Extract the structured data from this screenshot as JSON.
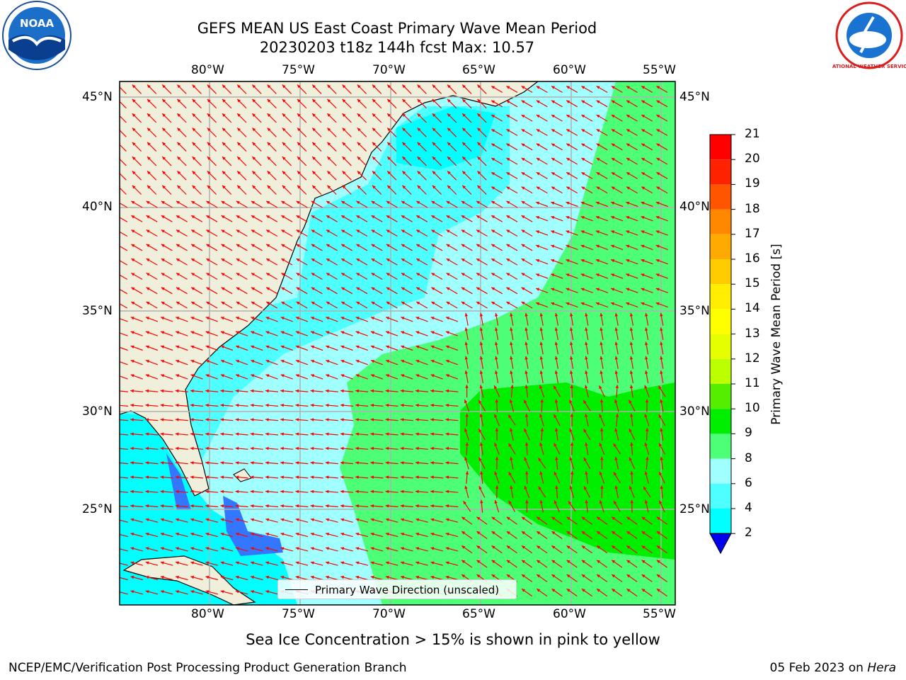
{
  "title": {
    "line1": "GEFS MEAN US East Coast Primary Wave Mean Period",
    "line2": "20230203 t18z 144h fcst   Max: 10.57"
  },
  "logos": {
    "left": "NOAA",
    "right": "NATIONAL WEATHER SERVICE"
  },
  "map": {
    "lon_labels": [
      "80°W",
      "75°W",
      "70°W",
      "65°W",
      "60°W",
      "55°W"
    ],
    "lat_labels": [
      "45°N",
      "40°N",
      "35°N",
      "30°N",
      "25°N"
    ],
    "legend_label": "Primary Wave Direction (unscaled)",
    "colors": {
      "land": "#efefdc",
      "field_4_6": "#00ffff",
      "field_6_8": "#4dffff",
      "field_8_9": "#a0ffff",
      "field_9_10": "#4dff77",
      "field_10_11": "#00ee00",
      "field_2_4": "#3377ff",
      "arrow": "#ff0000",
      "grid": "#b0b0b0"
    }
  },
  "colorbar": {
    "label": "Primary Wave Mean Period [s]",
    "ticks": [
      "2",
      "4",
      "6",
      "8",
      "9",
      "10",
      "11",
      "12",
      "13",
      "14",
      "15",
      "16",
      "17",
      "18",
      "19",
      "20",
      "21"
    ],
    "colors": [
      "#0066ff",
      "#00ffff",
      "#4dffff",
      "#a0ffff",
      "#4dff77",
      "#00ee00",
      "#55ee00",
      "#bbff00",
      "#e6ff00",
      "#ffff00",
      "#ffee00",
      "#ffcc00",
      "#ffaa00",
      "#ff8800",
      "#ff5500",
      "#ff2200",
      "#ff0000"
    ],
    "extend_color": "#0000ee"
  },
  "footer": {
    "note": "Sea Ice Concentration > 15% is shown in pink to yellow",
    "credit": "NCEP/EMC/Verification Post Processing Product Generation Branch",
    "date": "05 Feb 2023 on ",
    "machine": "Hera"
  }
}
